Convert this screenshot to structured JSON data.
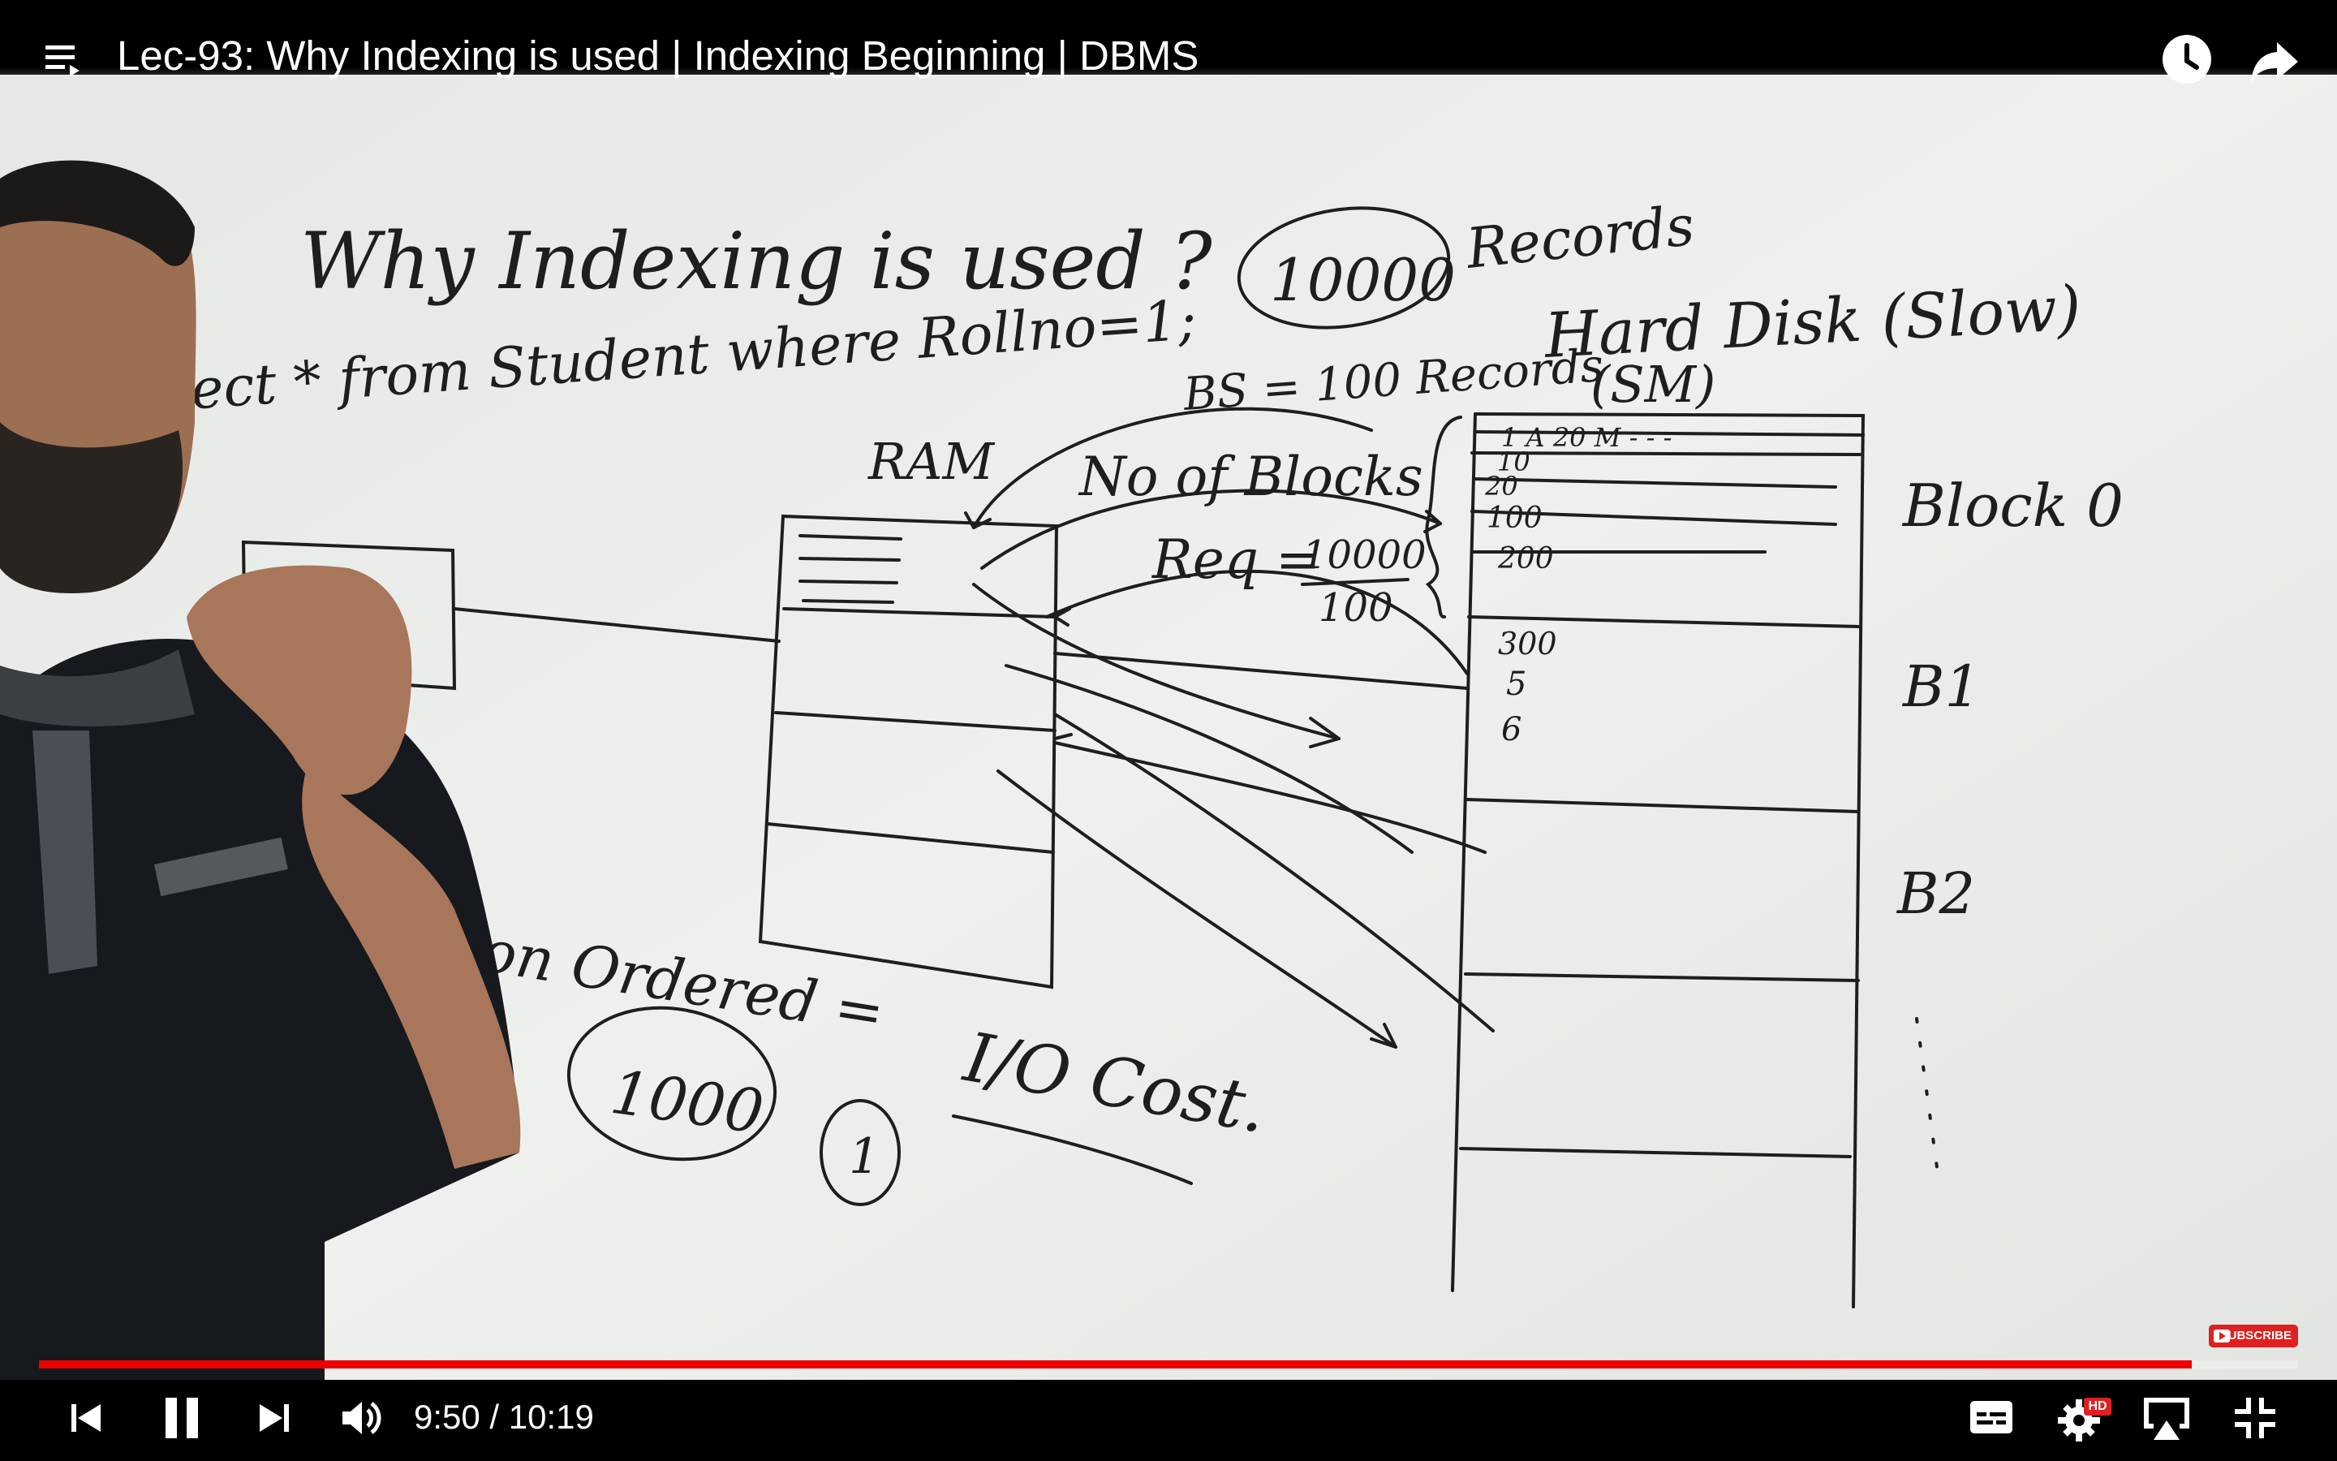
{
  "video": {
    "title": "Lec-93: Why Indexing is used | Indexing Beginning | DBMS",
    "current_time": "9:50",
    "separator": " / ",
    "duration": "10:19",
    "progress": 0.953
  },
  "whiteboard": {
    "heading": "Why Indexing is used ?",
    "records_count": "10000",
    "records_word": "Records",
    "query": "lect * from Student where Rollno=1;",
    "hard_disk": "Hard Disk (Slow)",
    "sm": "(SM)",
    "block_size": "BS = 100 Records",
    "ram": "RAM",
    "no_of_blocks": "No of Blocks",
    "req": "Req =",
    "req_numerator": "10000",
    "req_denominator": "100",
    "row1": "1   A   20   M - - -",
    "rows": [
      "10",
      "20",
      "100",
      "200",
      "300",
      "5",
      "6"
    ],
    "block0": "Block 0",
    "block1": "B1",
    "block2": "B2",
    "non_ordered": "on Ordered =",
    "thousand": "1000",
    "one": "1",
    "io_cost": "I/O Cost."
  },
  "controls": {
    "subscribe": "SUBSCRIBE",
    "hd": "HD"
  },
  "colors": {
    "progress_played": "#ee0000",
    "progress_track": "rgba(255,255,255,0.35)",
    "marker": "#1e1e1e",
    "board": "#e9ebe8"
  }
}
